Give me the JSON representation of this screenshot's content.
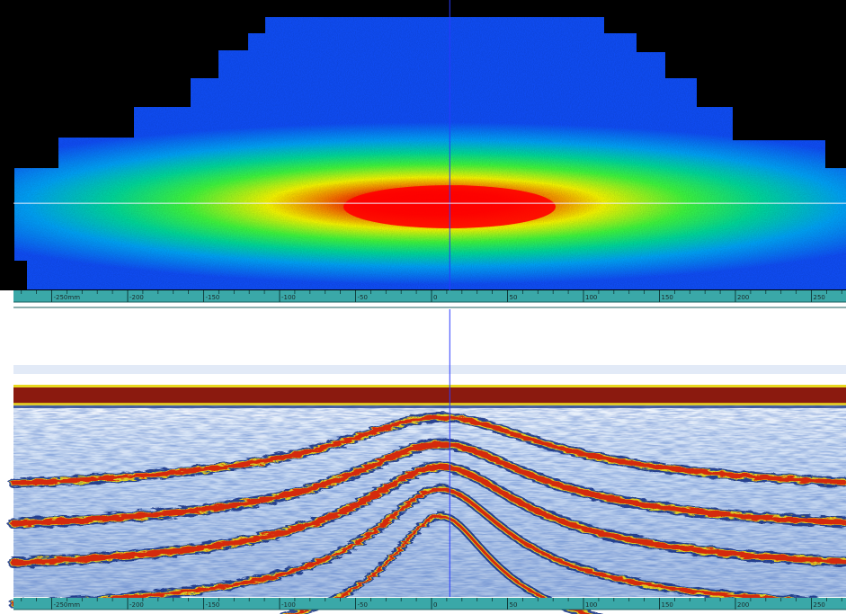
{
  "top_view": {
    "ruler": {
      "labels": [
        "-250mm",
        "-200",
        "-150",
        "-100",
        "-50",
        "0",
        "50",
        "100",
        "150",
        "200",
        "250"
      ],
      "values_mm": [
        -250,
        -200,
        -150,
        -100,
        -50,
        0,
        50,
        100,
        150,
        200,
        250
      ]
    },
    "cursor": {
      "x_mm": 12,
      "depth_fraction": 0.7
    },
    "colors": {
      "hot": "#ff0000",
      "warm": "#ffff00",
      "mid": "#00ff80",
      "cool": "#0099ff",
      "cold": "#1060ff",
      "background": "#000000"
    }
  },
  "bottom_view": {
    "ruler": {
      "labels": [
        "-250mm",
        "-200",
        "-150",
        "-100",
        "-50",
        "0",
        "50",
        "100",
        "150",
        "200",
        "250"
      ],
      "values_mm": [
        -250,
        -200,
        -150,
        -100,
        -50,
        0,
        50,
        100,
        150,
        200,
        250
      ]
    },
    "cursor": {
      "x_mm": 12
    },
    "colors": {
      "surface": "#8b1a0f",
      "strong": "#d42a10",
      "yellow": "#e8d820",
      "dark": "#0a2a80",
      "light": "#b8cce8",
      "background": "#ffffff"
    }
  },
  "ruler_colors": {
    "fill": "#3aa8a8",
    "edge": "#1b5e5e"
  }
}
